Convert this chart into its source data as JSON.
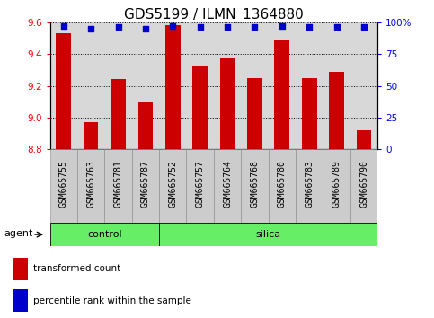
{
  "title": "GDS5199 / ILMN_1364880",
  "samples": [
    "GSM665755",
    "GSM665763",
    "GSM665781",
    "GSM665787",
    "GSM665752",
    "GSM665757",
    "GSM665764",
    "GSM665768",
    "GSM665780",
    "GSM665783",
    "GSM665789",
    "GSM665790"
  ],
  "transformed_count": [
    9.53,
    8.97,
    9.24,
    9.1,
    9.58,
    9.33,
    9.37,
    9.25,
    9.49,
    9.25,
    9.29,
    8.92
  ],
  "percentile_rank": [
    97,
    95,
    96,
    95,
    97,
    96,
    96,
    96,
    97,
    96,
    96,
    96
  ],
  "ylim_left": [
    8.8,
    9.6
  ],
  "ylim_right": [
    0,
    100
  ],
  "yticks_left": [
    8.8,
    9.0,
    9.2,
    9.4,
    9.6
  ],
  "yticks_right": [
    0,
    25,
    50,
    75,
    100
  ],
  "ytick_labels_right": [
    "0",
    "25",
    "50",
    "75",
    "100%"
  ],
  "group_separator": 4,
  "control_label": "control",
  "silica_label": "silica",
  "group_color": "#66EE66",
  "bar_color": "#CC0000",
  "dot_color": "#0000CC",
  "bar_bottom": 8.8,
  "agent_label": "agent",
  "legend_red_label": "transformed count",
  "legend_blue_label": "percentile rank within the sample",
  "plot_bg_color": "#d8d8d8",
  "tick_bg_color": "#cccccc",
  "background_color": "#ffffff",
  "title_fontsize": 11,
  "tick_fontsize": 7.5,
  "xtick_fontsize": 7,
  "group_fontsize": 8,
  "legend_fontsize": 7.5
}
